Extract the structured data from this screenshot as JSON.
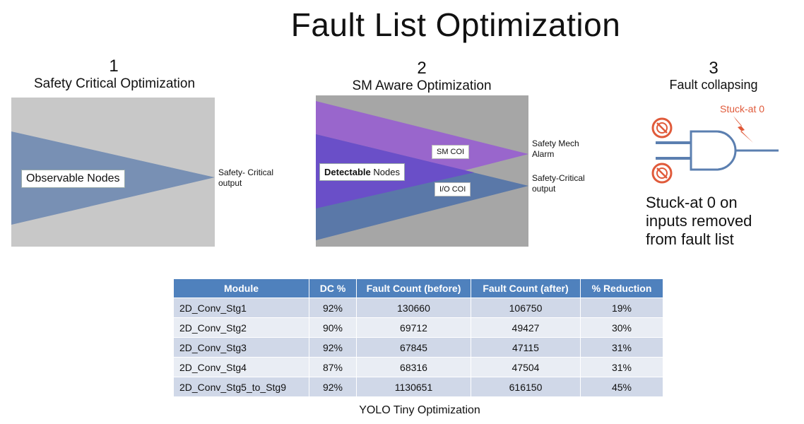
{
  "title": "Fault List Optimization",
  "sections": [
    {
      "number": "1",
      "title": "Safety Critical Optimization",
      "box_label": "Observable Nodes",
      "output_label": "Safety- Critical\noutput"
    },
    {
      "number": "2",
      "title": "SM Aware Optimization",
      "box_label_bold": "Detectable",
      "box_label_rest": " Nodes",
      "sm_coi": "SM COI",
      "io_coi": "I/O COI",
      "alarm_label": "Safety Mech\nAlarm",
      "output_label": "Safety-Critical\noutput"
    },
    {
      "number": "3",
      "title": "Fault collapsing",
      "stuck_label": "Stuck-at 0",
      "note": "Stuck-at 0 on\ninputs removed\nfrom fault list"
    }
  ],
  "colors": {
    "gray_bg": "#c8c8c8",
    "dark_gray_bg": "#a6a6a6",
    "blue_triangle": "#7890b4",
    "purple_top": "#9966cc",
    "purple_mid": "#6a4fc8",
    "steel_blue": "#5a78a8",
    "table_header": "#4f81bd",
    "red": "#e05a3a",
    "gate_blue": "#5b7fb0"
  },
  "table": {
    "headers": [
      "Module",
      "DC %",
      "Fault Count (before)",
      "Fault Count (after)",
      "% Reduction"
    ],
    "rows": [
      [
        "2D_Conv_Stg1",
        "92%",
        "130660",
        "106750",
        "19%"
      ],
      [
        "2D_Conv_Stg2",
        "90%",
        "69712",
        "49427",
        "30%"
      ],
      [
        "2D_Conv_Stg3",
        "92%",
        "67845",
        "47115",
        "31%"
      ],
      [
        "2D_Conv_Stg4",
        "87%",
        "68316",
        "47504",
        "31%"
      ],
      [
        "2D_Conv_Stg5_to_Stg9",
        "92%",
        "1130651",
        "616150",
        "45%"
      ]
    ],
    "caption": "YOLO Tiny Optimization"
  }
}
